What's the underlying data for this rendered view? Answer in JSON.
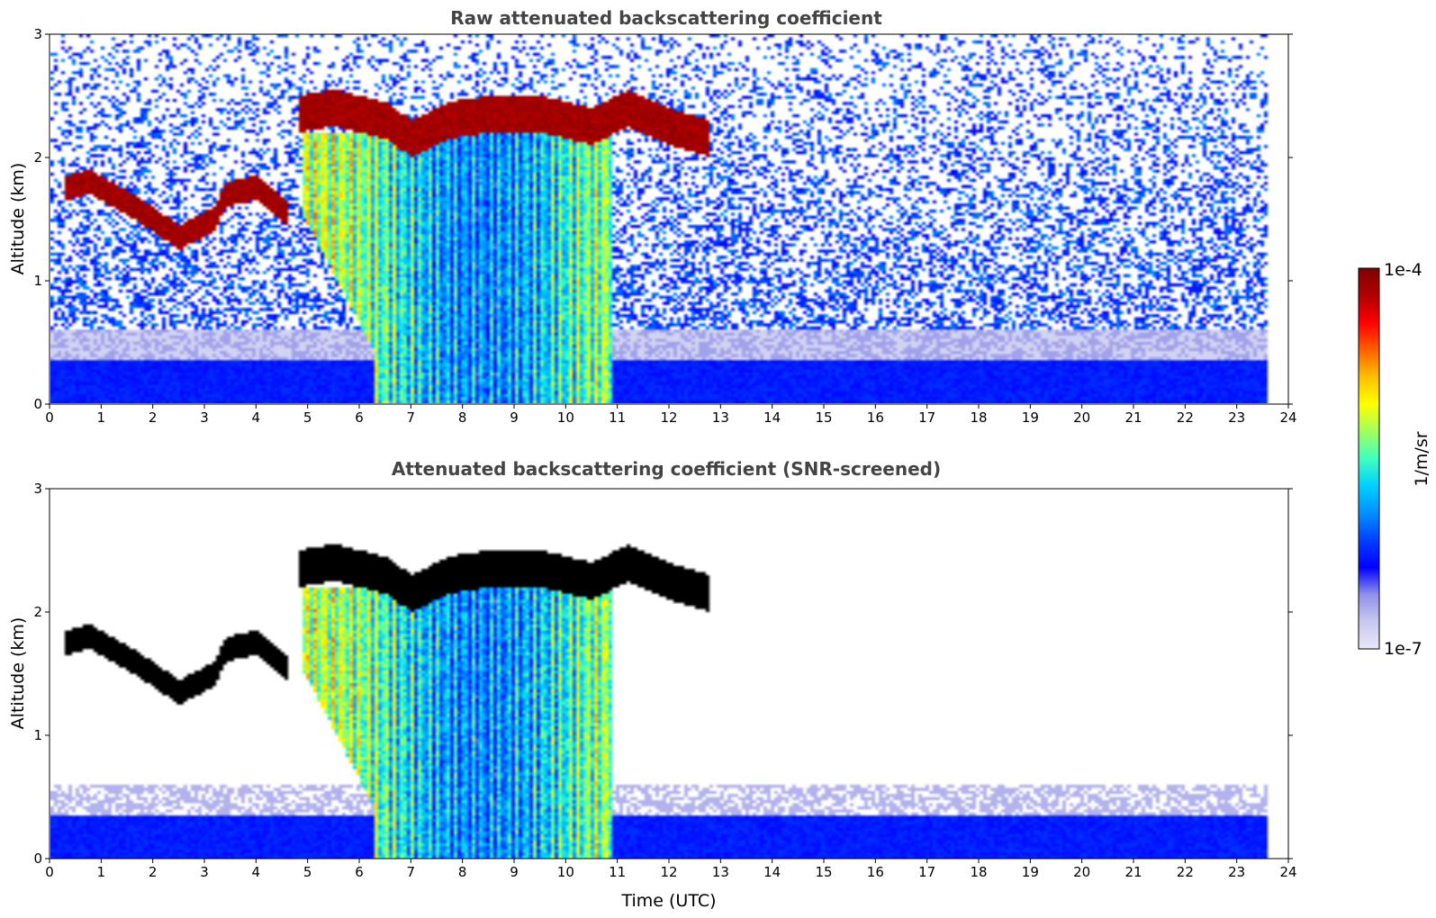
{
  "chart_data": [
    {
      "type": "heatmap",
      "title": "Raw attenuated backscattering coefficient",
      "xlabel": "",
      "ylabel": "Altitude (km)",
      "xlim": [
        0,
        24
      ],
      "ylim": [
        0,
        3
      ],
      "xticks": [
        "0",
        "1",
        "2",
        "3",
        "4",
        "5",
        "6",
        "7",
        "8",
        "9",
        "10",
        "11",
        "12",
        "13",
        "14",
        "15",
        "16",
        "17",
        "18",
        "19",
        "20",
        "21",
        "22",
        "23",
        "24"
      ],
      "yticks": [
        "0",
        "1",
        "2",
        "3"
      ],
      "data_end_hour": 23.6,
      "screened": false
    },
    {
      "type": "heatmap",
      "title": "Attenuated backscattering coefficient (SNR-screened)",
      "xlabel": "Time (UTC)",
      "ylabel": "Altitude (km)",
      "xlim": [
        0,
        24
      ],
      "ylim": [
        0,
        3
      ],
      "xticks": [
        "0",
        "1",
        "2",
        "3",
        "4",
        "5",
        "6",
        "7",
        "8",
        "9",
        "10",
        "11",
        "12",
        "13",
        "14",
        "15",
        "16",
        "17",
        "18",
        "19",
        "20",
        "21",
        "22",
        "23",
        "24"
      ],
      "yticks": [
        "0",
        "1",
        "2",
        "3"
      ],
      "data_end_hour": 23.6,
      "screened": true
    }
  ],
  "colorbar": {
    "label": "1/m/sr",
    "max_label": "1e-4",
    "min_label": "1e-7",
    "colors": [
      "#e8e8f8",
      "#c8c8f0",
      "#9090e8",
      "#0000ff",
      "#0040ff",
      "#0090ff",
      "#00d0ff",
      "#40ffc0",
      "#a0ff60",
      "#ffff00",
      "#ffc000",
      "#ff6000",
      "#ff0000",
      "#b00000",
      "#800000"
    ]
  },
  "cloud_layers": [
    {
      "segments": [
        [
          0.3,
          1.75
        ],
        [
          0.75,
          1.8
        ],
        [
          1.2,
          1.7
        ],
        [
          1.8,
          1.55
        ],
        [
          2.5,
          1.35
        ],
        [
          3.2,
          1.5
        ],
        [
          3.4,
          1.7
        ],
        [
          4.0,
          1.75
        ],
        [
          4.6,
          1.55
        ]
      ],
      "thickness": 0.2
    },
    {
      "segments": [
        [
          4.8,
          2.35
        ],
        [
          5.5,
          2.4
        ],
        [
          6.5,
          2.3
        ],
        [
          7.0,
          2.15
        ],
        [
          7.7,
          2.3
        ],
        [
          8.5,
          2.35
        ],
        [
          9.5,
          2.35
        ],
        [
          10.5,
          2.25
        ],
        [
          11.2,
          2.4
        ],
        [
          12.0,
          2.25
        ],
        [
          12.8,
          2.15
        ]
      ],
      "thickness": 0.3
    }
  ],
  "precip_region": {
    "start": 4.9,
    "end": 10.9
  }
}
